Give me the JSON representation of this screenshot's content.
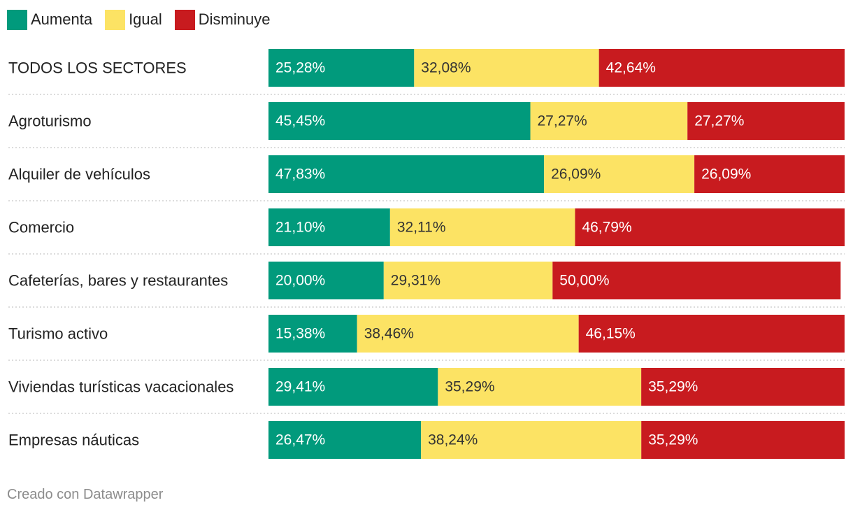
{
  "chart_data": {
    "type": "bar",
    "orientation": "horizontal",
    "stacked": true,
    "categories": [
      "TODOS LOS SECTORES",
      "Agroturismo",
      "Alquiler de vehículos",
      "Comercio",
      "Cafeterías, bares y restaurantes",
      "Turismo activo",
      "Viviendas turísticas vacacionales",
      "Empresas náuticas"
    ],
    "series": [
      {
        "name": "Aumenta",
        "color": "#019a7c",
        "text_color": "#ffffff",
        "values": [
          25.28,
          45.45,
          47.83,
          21.1,
          20.0,
          15.38,
          29.41,
          26.47
        ],
        "labels": [
          "25,28%",
          "45,45%",
          "47,83%",
          "21,10%",
          "20,00%",
          "15,38%",
          "29,41%",
          "26,47%"
        ]
      },
      {
        "name": "Igual",
        "color": "#fce364",
        "text_color": "#333333",
        "values": [
          32.08,
          27.27,
          26.09,
          32.11,
          29.31,
          38.46,
          35.29,
          38.24
        ],
        "labels": [
          "32,08%",
          "27,27%",
          "26,09%",
          "32,11%",
          "29,31%",
          "38,46%",
          "35,29%",
          "38,24%"
        ]
      },
      {
        "name": "Disminuye",
        "color": "#c81b1f",
        "text_color": "#ffffff",
        "values": [
          42.64,
          27.27,
          26.09,
          46.79,
          50.0,
          46.15,
          35.29,
          35.29
        ],
        "labels": [
          "42,64%",
          "27,27%",
          "26,09%",
          "46,79%",
          "50,00%",
          "46,15%",
          "35,29%",
          "35,29%"
        ]
      }
    ],
    "xlim": [
      0,
      100
    ],
    "legend": "top-left",
    "grid": false
  },
  "footer": {
    "credit": "Creado con Datawrapper"
  }
}
